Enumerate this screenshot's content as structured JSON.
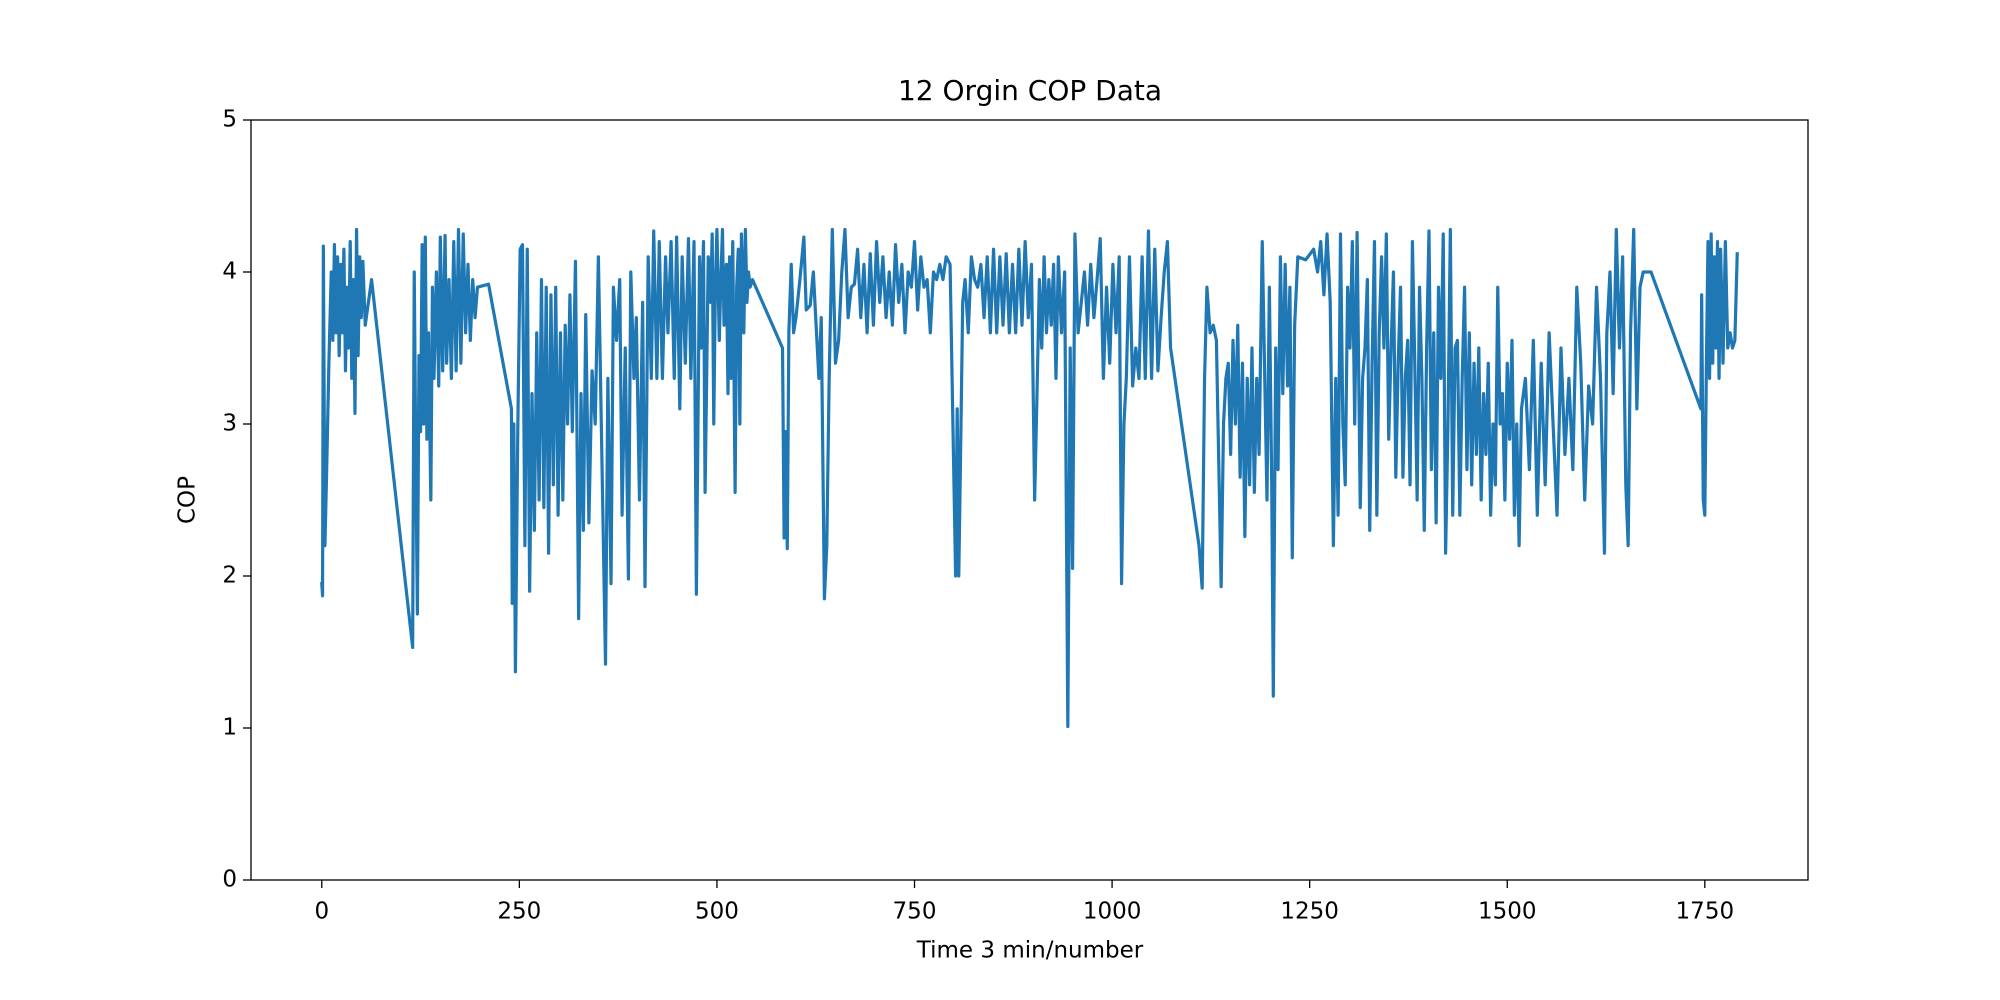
{
  "chart_data": {
    "type": "line",
    "title": "12 Orgin COP Data",
    "xlabel": "Time 3 min/number",
    "ylabel": "COP",
    "color": "#1f77b4",
    "xlim": [
      -89.55,
      1880.55
    ],
    "xticks": [
      0,
      250,
      500,
      750,
      1000,
      1250,
      1500,
      1750
    ],
    "ylim": [
      0,
      5
    ],
    "yticks": [
      0,
      1,
      2,
      3,
      4,
      5
    ],
    "grid": false,
    "x": [
      0,
      1,
      2,
      4,
      6,
      9,
      12,
      14,
      16,
      18,
      20,
      22,
      24,
      26,
      28,
      30,
      32,
      34,
      36,
      38,
      40,
      42,
      44,
      46,
      48,
      50,
      52,
      55,
      63,
      115,
      117,
      119,
      121,
      123,
      125,
      127,
      129,
      131,
      133,
      135,
      138,
      140,
      142,
      145,
      148,
      150,
      153,
      156,
      158,
      161,
      164,
      167,
      170,
      173,
      176,
      179,
      182,
      185,
      188,
      191,
      194,
      197,
      211,
      240,
      241,
      243,
      245,
      248,
      251,
      254,
      257,
      260,
      263,
      266,
      269,
      272,
      275,
      278,
      281,
      284,
      287,
      290,
      293,
      296,
      299,
      302,
      305,
      308,
      311,
      314,
      317,
      321,
      325,
      328,
      331,
      334,
      338,
      342,
      346,
      350,
      359,
      362,
      366,
      369,
      373,
      377,
      380,
      384,
      388,
      391,
      395,
      398,
      402,
      406,
      409,
      413,
      417,
      420,
      424,
      427,
      431,
      435,
      438,
      442,
      446,
      449,
      453,
      456,
      460,
      464,
      467,
      471,
      474,
      476,
      478,
      480,
      483,
      485,
      487,
      489,
      492,
      494,
      496,
      498,
      500,
      503,
      505,
      507,
      509,
      512,
      514,
      516,
      518,
      520,
      523,
      525,
      527,
      529,
      531,
      534,
      536,
      538,
      540,
      542,
      545,
      583,
      585,
      587,
      589,
      591,
      594,
      597,
      600,
      605,
      610,
      613,
      618,
      622,
      626,
      629,
      632,
      636,
      639,
      642,
      646,
      650,
      654,
      658,
      662,
      666,
      670,
      674,
      678,
      682,
      686,
      690,
      694,
      698,
      702,
      706,
      710,
      714,
      718,
      722,
      726,
      730,
      734,
      738,
      742,
      746,
      750,
      754,
      758,
      762,
      766,
      770,
      774,
      778,
      782,
      786,
      790,
      795,
      802,
      804,
      806,
      808,
      811,
      814,
      818,
      822,
      826,
      830,
      834,
      838,
      842,
      846,
      850,
      854,
      858,
      862,
      866,
      870,
      874,
      878,
      882,
      886,
      890,
      894,
      898,
      902,
      905,
      908,
      911,
      914,
      917,
      920,
      923,
      926,
      929,
      932,
      936,
      940,
      944,
      947,
      950,
      953,
      957,
      961,
      965,
      969,
      973,
      977,
      981,
      985,
      989,
      993,
      997,
      1001,
      1005,
      1009,
      1012,
      1015,
      1018,
      1022,
      1026,
      1030,
      1034,
      1038,
      1042,
      1046,
      1050,
      1054,
      1058,
      1062,
      1066,
      1070,
      1074,
      1110,
      1114,
      1117,
      1120,
      1124,
      1128,
      1132,
      1138,
      1141,
      1144,
      1147,
      1150,
      1153,
      1156,
      1159,
      1162,
      1165,
      1168,
      1171,
      1174,
      1177,
      1180,
      1183,
      1186,
      1190,
      1193,
      1196,
      1199,
      1202,
      1204,
      1207,
      1210,
      1213,
      1216,
      1219,
      1222,
      1225,
      1228,
      1231,
      1235,
      1245,
      1255,
      1260,
      1264,
      1268,
      1272,
      1276,
      1280,
      1283,
      1286,
      1289,
      1292,
      1295,
      1298,
      1301,
      1304,
      1307,
      1310,
      1314,
      1317,
      1320,
      1323,
      1326,
      1329,
      1332,
      1335,
      1338,
      1341,
      1344,
      1347,
      1350,
      1353,
      1356,
      1359,
      1362,
      1365,
      1368,
      1371,
      1374,
      1377,
      1380,
      1383,
      1386,
      1389,
      1392,
      1395,
      1398,
      1401,
      1404,
      1407,
      1410,
      1413,
      1416,
      1419,
      1422,
      1425,
      1428,
      1431,
      1434,
      1437,
      1440,
      1443,
      1446,
      1449,
      1452,
      1455,
      1458,
      1461,
      1464,
      1467,
      1470,
      1473,
      1476,
      1479,
      1482,
      1485,
      1488,
      1491,
      1494,
      1497,
      1500,
      1503,
      1506,
      1509,
      1512,
      1515,
      1518,
      1523,
      1528,
      1533,
      1538,
      1543,
      1548,
      1553,
      1558,
      1563,
      1568,
      1573,
      1578,
      1583,
      1588,
      1593,
      1598,
      1603,
      1608,
      1613,
      1618,
      1623,
      1626,
      1630,
      1634,
      1638,
      1642,
      1646,
      1650,
      1653,
      1656,
      1660,
      1664,
      1668,
      1672,
      1682,
      1745,
      1746,
      1748,
      1750,
      1752,
      1754,
      1756,
      1758,
      1760,
      1762,
      1764,
      1766,
      1768,
      1770,
      1773,
      1776,
      1779,
      1782,
      1785,
      1788,
      1791
    ],
    "values": [
      1.95,
      1.87,
      4.17,
      2.2,
      2.65,
      3.4,
      4.0,
      3.55,
      4.18,
      3.6,
      4.1,
      3.45,
      4.05,
      3.6,
      4.15,
      3.35,
      3.9,
      3.5,
      4.2,
      3.3,
      3.95,
      3.07,
      4.28,
      3.45,
      4.1,
      3.7,
      4.07,
      3.65,
      3.95,
      1.53,
      4.0,
      2.75,
      1.75,
      3.45,
      2.95,
      4.18,
      3.0,
      4.23,
      2.9,
      3.6,
      2.5,
      3.9,
      3.3,
      4.0,
      3.25,
      4.23,
      3.35,
      4.24,
      3.4,
      3.95,
      3.3,
      4.2,
      3.35,
      4.28,
      3.4,
      4.25,
      3.6,
      4.05,
      3.55,
      3.95,
      3.7,
      3.9,
      3.92,
      3.1,
      1.82,
      3.0,
      1.37,
      2.95,
      4.15,
      4.18,
      2.2,
      4.15,
      1.9,
      3.2,
      2.3,
      3.6,
      2.5,
      3.95,
      2.45,
      3.9,
      2.15,
      3.85,
      2.6,
      3.9,
      2.4,
      3.6,
      2.5,
      3.65,
      3.0,
      3.85,
      2.95,
      4.07,
      1.72,
      3.2,
      2.3,
      3.72,
      2.35,
      3.35,
      3.0,
      4.1,
      1.42,
      3.3,
      1.95,
      3.9,
      3.55,
      3.95,
      2.4,
      3.5,
      1.98,
      4.0,
      3.3,
      3.7,
      2.5,
      3.8,
      1.93,
      4.1,
      3.3,
      4.27,
      3.3,
      4.2,
      3.3,
      4.1,
      3.6,
      4.2,
      3.3,
      4.23,
      3.1,
      4.1,
      3.4,
      4.22,
      3.3,
      4.2,
      1.88,
      3.0,
      4.1,
      3.5,
      4.2,
      2.55,
      3.3,
      4.1,
      3.8,
      4.25,
      3.0,
      3.9,
      4.28,
      3.55,
      3.95,
      4.28,
      3.65,
      4.05,
      3.2,
      4.1,
      3.3,
      4.2,
      2.55,
      3.9,
      4.15,
      3.0,
      4.25,
      3.6,
      4.28,
      3.8,
      4.0,
      3.9,
      3.95,
      3.5,
      2.25,
      2.95,
      2.18,
      3.6,
      4.05,
      3.6,
      3.7,
      3.95,
      4.23,
      3.75,
      3.78,
      4.0,
      3.6,
      3.3,
      3.7,
      1.85,
      2.2,
      3.3,
      4.28,
      3.4,
      3.55,
      4.0,
      4.28,
      3.7,
      3.9,
      3.92,
      4.15,
      3.7,
      4.05,
      3.6,
      4.12,
      3.65,
      4.2,
      3.8,
      4.1,
      3.7,
      4.0,
      3.65,
      4.18,
      3.8,
      4.05,
      3.6,
      4.0,
      3.9,
      4.2,
      3.75,
      4.1,
      3.9,
      3.95,
      3.6,
      4.0,
      3.95,
      4.05,
      3.95,
      4.1,
      4.05,
      2.0,
      3.1,
      2.0,
      2.7,
      3.8,
      3.95,
      3.6,
      4.1,
      3.95,
      3.9,
      4.05,
      3.7,
      4.1,
      3.6,
      4.15,
      3.6,
      4.1,
      3.65,
      4.12,
      3.6,
      4.05,
      3.6,
      4.15,
      3.65,
      4.2,
      3.7,
      4.05,
      2.5,
      3.2,
      3.95,
      3.5,
      4.1,
      3.6,
      3.95,
      3.65,
      4.05,
      3.3,
      4.1,
      3.6,
      4.0,
      1.01,
      3.5,
      2.05,
      4.25,
      3.6,
      3.8,
      4.0,
      3.65,
      4.05,
      3.7,
      3.95,
      4.22,
      3.3,
      3.9,
      3.4,
      4.05,
      3.6,
      4.1,
      1.95,
      3.0,
      3.3,
      4.1,
      3.25,
      3.5,
      3.3,
      4.1,
      3.3,
      4.27,
      3.3,
      4.15,
      3.35,
      3.7,
      4.0,
      4.2,
      3.5,
      2.2,
      1.92,
      3.3,
      3.9,
      3.6,
      3.65,
      3.55,
      1.93,
      3.0,
      3.3,
      3.4,
      2.8,
      3.55,
      3.0,
      3.65,
      2.65,
      3.4,
      2.26,
      3.3,
      2.6,
      3.5,
      2.55,
      3.3,
      2.8,
      4.2,
      3.35,
      2.5,
      3.9,
      2.6,
      1.21,
      3.5,
      2.7,
      4.1,
      3.2,
      4.05,
      3.25,
      3.9,
      2.12,
      3.65,
      4.1,
      4.08,
      4.15,
      4.0,
      4.2,
      3.85,
      4.25,
      3.8,
      2.2,
      3.3,
      2.4,
      4.25,
      3.0,
      2.6,
      3.9,
      3.5,
      4.2,
      3.0,
      4.26,
      2.45,
      3.3,
      3.5,
      3.95,
      2.3,
      3.4,
      4.2,
      2.4,
      3.6,
      4.1,
      3.5,
      4.25,
      2.9,
      3.5,
      4.0,
      2.65,
      3.4,
      3.9,
      2.65,
      3.3,
      3.55,
      2.6,
      4.2,
      3.4,
      2.5,
      3.9,
      3.3,
      2.3,
      3.5,
      4.27,
      2.7,
      3.6,
      2.35,
      3.9,
      3.3,
      4.25,
      2.15,
      3.0,
      4.28,
      2.4,
      3.5,
      3.55,
      2.4,
      3.3,
      3.9,
      2.7,
      3.6,
      2.6,
      3.4,
      2.8,
      3.5,
      2.5,
      3.2,
      2.8,
      3.4,
      2.4,
      3.0,
      2.6,
      3.9,
      3.0,
      3.2,
      2.5,
      3.4,
      2.9,
      3.55,
      2.4,
      3.0,
      2.2,
      3.1,
      3.3,
      2.7,
      3.55,
      2.4,
      3.4,
      2.6,
      3.6,
      3.0,
      2.4,
      3.5,
      2.8,
      3.3,
      2.7,
      3.9,
      3.4,
      2.5,
      3.25,
      3.0,
      3.9,
      3.3,
      2.15,
      3.6,
      4.0,
      3.2,
      4.28,
      3.5,
      4.1,
      2.6,
      2.2,
      3.6,
      4.28,
      3.1,
      3.9,
      4.0,
      4.0,
      3.1,
      3.85,
      2.5,
      2.4,
      3.4,
      4.2,
      3.3,
      4.25,
      3.4,
      4.1,
      3.5,
      4.2,
      3.3,
      4.15,
      3.4,
      4.2,
      3.5,
      3.6,
      3.5,
      3.55,
      4.12
    ]
  }
}
